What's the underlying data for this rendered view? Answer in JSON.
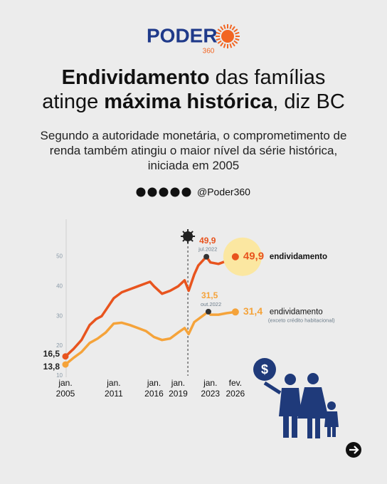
{
  "header": {
    "logo": {
      "name": "PODER",
      "number": "360"
    },
    "title": [
      [
        {
          "text": "Endividamento",
          "bold": true
        },
        {
          "text": " das famílias",
          "bold": false
        }
      ],
      [
        {
          "text": "atinge ",
          "bold": false
        },
        {
          "text": "máxima histórica",
          "bold": true
        },
        {
          "text": ", diz BC",
          "bold": false
        }
      ]
    ],
    "subtitle": "Segundo a autoridade monetária, o comprometimento de renda também atingiu o maior nível da série histórica, iniciada em 2005",
    "handle": "@Poder360"
  },
  "chart_data": {
    "type": "line",
    "xlim": [
      2005,
      2026.2
    ],
    "ylim": [
      10,
      62
    ],
    "yticks": [
      10,
      20,
      30,
      40,
      50
    ],
    "xticks": [
      {
        "value": 2005,
        "label": "jan. 2005"
      },
      {
        "value": 2011,
        "label": "jan. 2011"
      },
      {
        "value": 2016,
        "label": "jan. 2016"
      },
      {
        "value": 2019,
        "label": "jan. 2019"
      },
      {
        "value": 2023,
        "label": "jan. 2023"
      },
      {
        "value": 2026.1,
        "label": "fev. 2026"
      }
    ],
    "events": [
      {
        "x": 2020.2
      }
    ],
    "series": [
      {
        "name": "endividamento",
        "color": "#e8541e",
        "highlight": true,
        "start_label": "16,5",
        "end_label": "49,9",
        "x": [
          2005,
          2006,
          2007,
          2008,
          2008.8,
          2009.5,
          2010,
          2011,
          2012,
          2013,
          2014,
          2015,
          2015.5,
          2016,
          2017,
          2018,
          2019,
          2019.8,
          2020.3,
          2021,
          2021.5,
          2022.5,
          2023,
          2024,
          2025,
          2026.1
        ],
        "values": [
          16.5,
          19,
          22,
          27,
          29,
          30,
          32,
          36,
          38,
          39,
          40,
          41,
          41.5,
          40,
          37.5,
          38.5,
          40,
          42,
          38.5,
          44,
          47,
          49.9,
          48,
          47.5,
          48.5,
          49.9
        ]
      },
      {
        "name": "endividamento",
        "note": "(exceto crédito habitacional)",
        "color": "#f5a33a",
        "highlight": false,
        "start_label": "13,8",
        "end_label": "31,4",
        "x": [
          2005,
          2006,
          2007,
          2008,
          2009,
          2010,
          2011,
          2012,
          2013,
          2014,
          2015,
          2016,
          2017,
          2018,
          2019,
          2019.8,
          2020.3,
          2021,
          2022.75,
          2023,
          2024,
          2025,
          2026.1
        ],
        "values": [
          13.8,
          16,
          18,
          21,
          22.5,
          24.5,
          27.5,
          27.8,
          27,
          26,
          25,
          23,
          22,
          22.5,
          24.5,
          26,
          24,
          28,
          31.5,
          30.5,
          30.5,
          31,
          31.4
        ]
      }
    ],
    "annotations": [
      {
        "x": 2022.5,
        "value": 49.9,
        "label": "49,9",
        "date": "jul.2022",
        "color": "#e8541e"
      },
      {
        "x": 2022.75,
        "value": 31.5,
        "label": "31,5",
        "date": "out.2022",
        "color": "#f5a33a"
      }
    ]
  },
  "illustration": {
    "symbol": "$"
  }
}
